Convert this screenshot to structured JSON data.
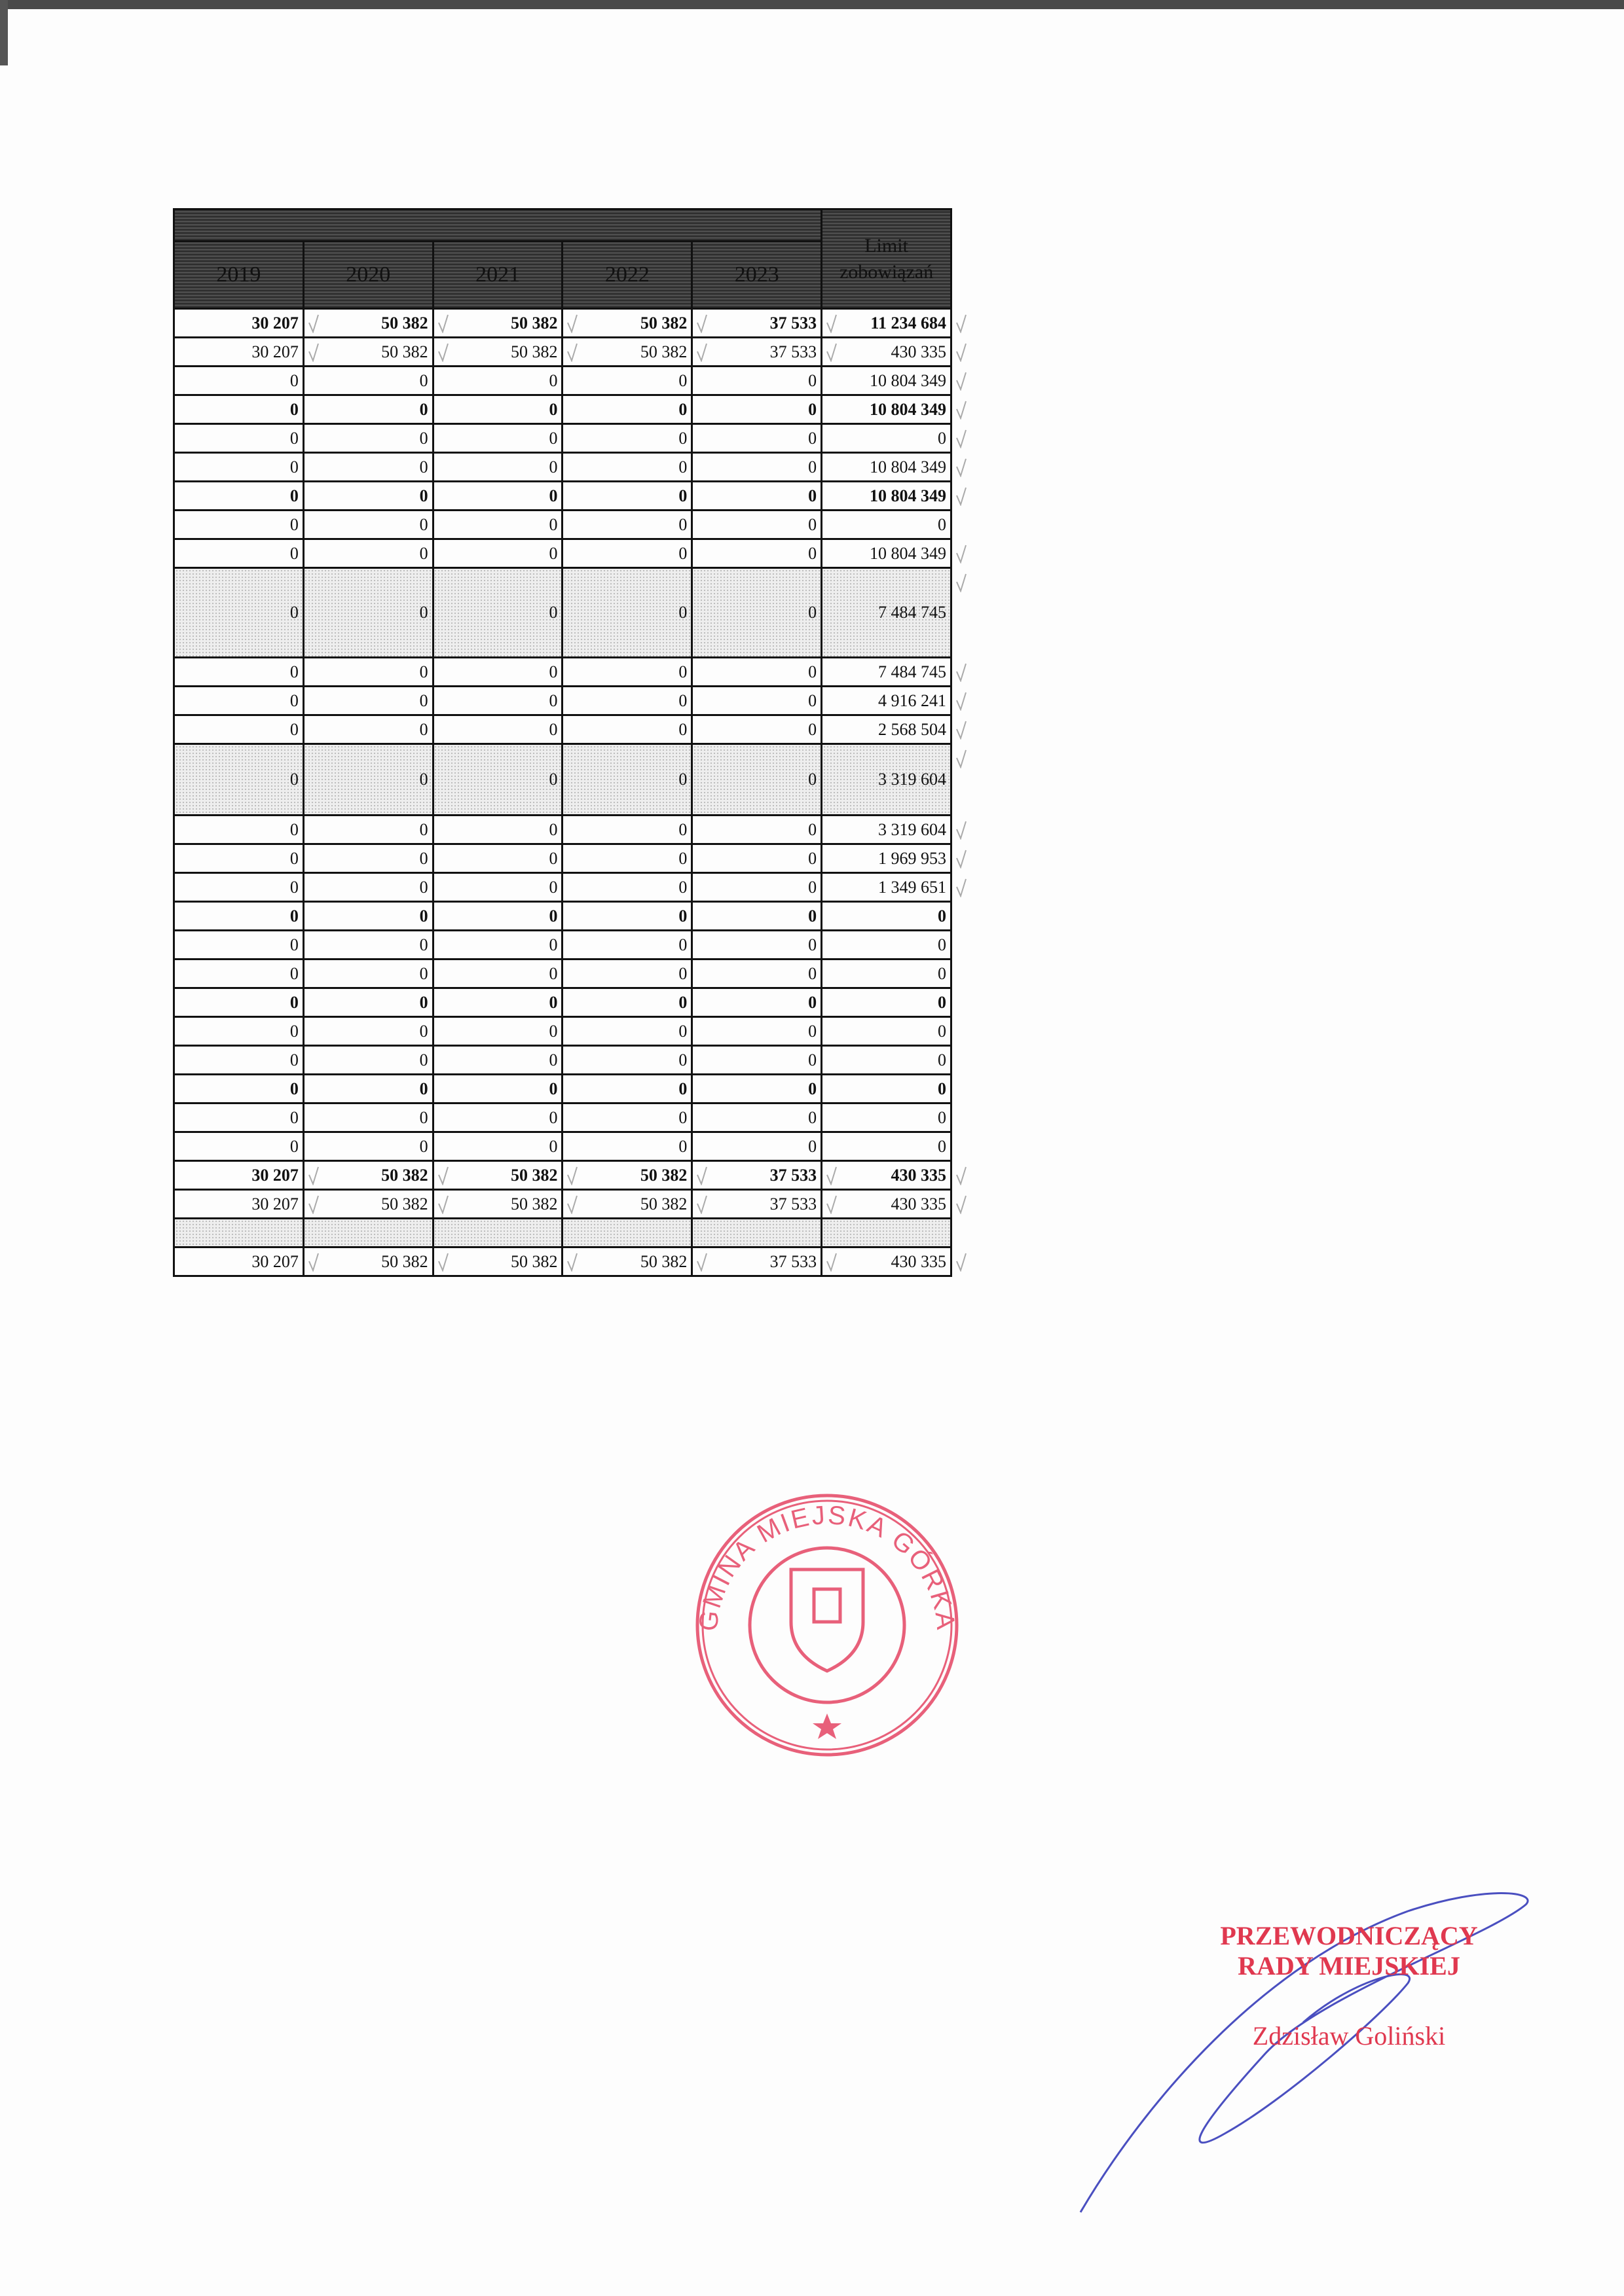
{
  "table": {
    "headers": [
      "2019",
      "2020",
      "2021",
      "2022",
      "2023",
      "Limit zobowiązań"
    ],
    "rows": [
      {
        "style": "bold",
        "checked": true,
        "values": [
          "30 207",
          "50 382",
          "50 382",
          "50 382",
          "37 533",
          "11 234 684"
        ]
      },
      {
        "style": "",
        "checked": true,
        "values": [
          "30 207",
          "50 382",
          "50 382",
          "50 382",
          "37 533",
          "430 335"
        ]
      },
      {
        "style": "",
        "checked": true,
        "values": [
          "0",
          "0",
          "0",
          "0",
          "0",
          "10 804 349"
        ]
      },
      {
        "style": "bold",
        "checked": true,
        "values": [
          "0",
          "0",
          "0",
          "0",
          "0",
          "10 804 349"
        ]
      },
      {
        "style": "",
        "checked": true,
        "values": [
          "0",
          "0",
          "0",
          "0",
          "0",
          "0"
        ]
      },
      {
        "style": "",
        "checked": true,
        "values": [
          "0",
          "0",
          "0",
          "0",
          "0",
          "10 804 349"
        ]
      },
      {
        "style": "bold",
        "checked": true,
        "values": [
          "0",
          "0",
          "0",
          "0",
          "0",
          "10 804 349"
        ]
      },
      {
        "style": "",
        "checked": false,
        "values": [
          "0",
          "0",
          "0",
          "0",
          "0",
          "0"
        ]
      },
      {
        "style": "",
        "checked": true,
        "values": [
          "0",
          "0",
          "0",
          "0",
          "0",
          "10 804 349"
        ]
      },
      {
        "style": "shaded tall",
        "checked": true,
        "values": [
          "0",
          "0",
          "0",
          "0",
          "0",
          "7 484 745"
        ]
      },
      {
        "style": "",
        "checked": true,
        "values": [
          "0",
          "0",
          "0",
          "0",
          "0",
          "7 484 745"
        ]
      },
      {
        "style": "",
        "checked": true,
        "values": [
          "0",
          "0",
          "0",
          "0",
          "0",
          "4 916 241"
        ]
      },
      {
        "style": "",
        "checked": true,
        "values": [
          "0",
          "0",
          "0",
          "0",
          "0",
          "2 568 504"
        ]
      },
      {
        "style": "shaded mid",
        "checked": true,
        "values": [
          "0",
          "0",
          "0",
          "0",
          "0",
          "3 319 604"
        ]
      },
      {
        "style": "",
        "checked": true,
        "values": [
          "0",
          "0",
          "0",
          "0",
          "0",
          "3 319 604"
        ]
      },
      {
        "style": "",
        "checked": true,
        "values": [
          "0",
          "0",
          "0",
          "0",
          "0",
          "1 969 953"
        ]
      },
      {
        "style": "",
        "checked": true,
        "values": [
          "0",
          "0",
          "0",
          "0",
          "0",
          "1 349 651"
        ]
      },
      {
        "style": "bold",
        "checked": false,
        "values": [
          "0",
          "0",
          "0",
          "0",
          "0",
          "0"
        ]
      },
      {
        "style": "",
        "checked": false,
        "values": [
          "0",
          "0",
          "0",
          "0",
          "0",
          "0"
        ]
      },
      {
        "style": "",
        "checked": false,
        "values": [
          "0",
          "0",
          "0",
          "0",
          "0",
          "0"
        ]
      },
      {
        "style": "bold",
        "checked": false,
        "values": [
          "0",
          "0",
          "0",
          "0",
          "0",
          "0"
        ]
      },
      {
        "style": "",
        "checked": false,
        "values": [
          "0",
          "0",
          "0",
          "0",
          "0",
          "0"
        ]
      },
      {
        "style": "",
        "checked": false,
        "values": [
          "0",
          "0",
          "0",
          "0",
          "0",
          "0"
        ]
      },
      {
        "style": "bold",
        "checked": false,
        "values": [
          "0",
          "0",
          "0",
          "0",
          "0",
          "0"
        ]
      },
      {
        "style": "",
        "checked": false,
        "values": [
          "0",
          "0",
          "0",
          "0",
          "0",
          "0"
        ]
      },
      {
        "style": "",
        "checked": false,
        "values": [
          "0",
          "0",
          "0",
          "0",
          "0",
          "0"
        ]
      },
      {
        "style": "bold",
        "checked": true,
        "values": [
          "30 207",
          "50 382",
          "50 382",
          "50 382",
          "37 533",
          "430 335"
        ]
      },
      {
        "style": "",
        "checked": true,
        "values": [
          "30 207",
          "50 382",
          "50 382",
          "50 382",
          "37 533",
          "430 335"
        ]
      },
      {
        "style": "shaded",
        "checked": false,
        "values": [
          "",
          "",
          "",
          "",
          "",
          ""
        ]
      },
      {
        "style": "",
        "checked": true,
        "values": [
          "30 207",
          "50 382",
          "50 382",
          "50 382",
          "37 533",
          "430 335"
        ]
      }
    ]
  },
  "stamp": {
    "text": "GMINA MIEJSKA GÓRKA",
    "color": "#e8607a"
  },
  "signature_block": {
    "title_line1": "PRZEWODNICZĄCY",
    "title_line2": "RADY MIEJSKIEJ",
    "name": "Zdzisław Goliński",
    "color": "#e0384f",
    "ink_color": "#4a4fc0"
  }
}
